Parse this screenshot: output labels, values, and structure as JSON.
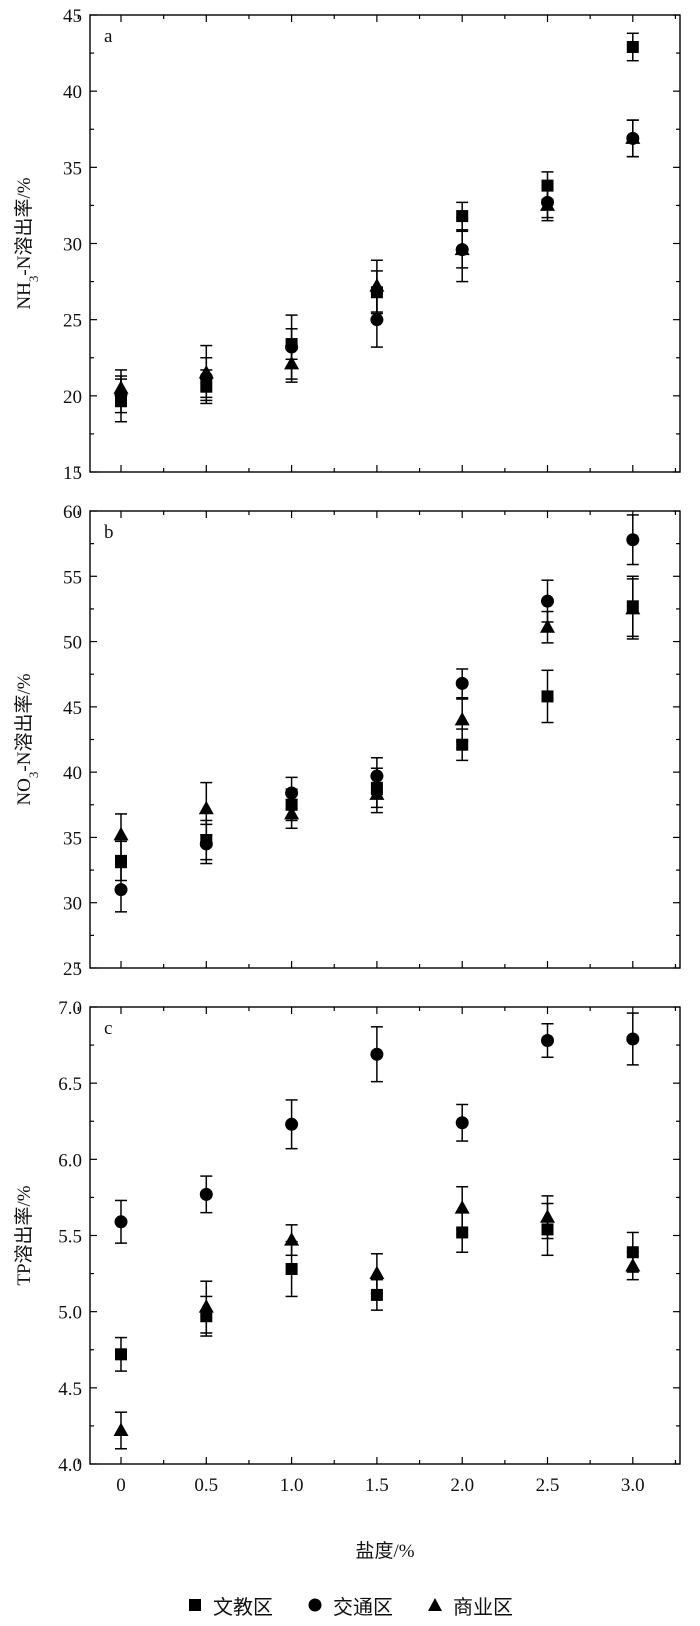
{
  "chart_data": [
    {
      "type": "scatter",
      "panel_label": "a",
      "ylabel": "NH3-N溶出率/%",
      "ylabel_parts": [
        "NH",
        "3",
        "-N溶出率/%"
      ],
      "xlabel": "盐度/%",
      "ylim": [
        15,
        45
      ],
      "yticks": [
        15,
        20,
        25,
        30,
        35,
        40,
        45
      ],
      "ytick_labels": [
        "15",
        "20",
        "25",
        "30",
        "35",
        "40",
        "45"
      ],
      "x": [
        0,
        0.5,
        1.0,
        1.5,
        2.0,
        2.5,
        3.0
      ],
      "error_bars": true,
      "series": [
        {
          "name": "文教区",
          "marker": "square",
          "values": [
            19.7,
            20.6,
            23.4,
            26.8,
            31.8,
            33.8,
            42.9
          ],
          "errors": [
            1.4,
            1.1,
            1.0,
            1.4,
            0.9,
            0.9,
            0.9
          ]
        },
        {
          "name": "交通区",
          "marker": "circle",
          "values": [
            20.1,
            21.2,
            23.2,
            25.0,
            29.6,
            32.7,
            36.9
          ],
          "errors": [
            1.2,
            1.3,
            2.1,
            1.8,
            2.1,
            1.0,
            1.2
          ]
        },
        {
          "name": "商业区",
          "marker": "triangle",
          "values": [
            20.5,
            21.5,
            22.1,
            27.2,
            29.6,
            32.5,
            36.9
          ],
          "errors": [
            1.2,
            1.8,
            1.2,
            1.7,
            1.2,
            1.0,
            1.2
          ]
        }
      ]
    },
    {
      "type": "scatter",
      "panel_label": "b",
      "ylabel": "NO3-N溶出率/%",
      "ylabel_parts": [
        "NO",
        "3",
        "-N溶出率/%"
      ],
      "xlabel": "盐度/%",
      "ylim": [
        25,
        60
      ],
      "yticks": [
        25,
        30,
        35,
        40,
        45,
        50,
        55,
        60
      ],
      "ytick_labels": [
        "25",
        "30",
        "35",
        "40",
        "45",
        "50",
        "55",
        "60"
      ],
      "x": [
        0,
        0.5,
        1.0,
        1.5,
        2.0,
        2.5,
        3.0
      ],
      "error_bars": true,
      "series": [
        {
          "name": "文教区",
          "marker": "square",
          "values": [
            33.2,
            34.8,
            37.5,
            38.8,
            42.1,
            45.8,
            52.7
          ],
          "errors": [
            1.5,
            1.5,
            1.2,
            1.5,
            1.2,
            2.0,
            2.3
          ]
        },
        {
          "name": "交通区",
          "marker": "circle",
          "values": [
            31.0,
            34.5,
            38.4,
            39.7,
            46.8,
            53.1,
            57.8
          ],
          "errors": [
            1.7,
            1.5,
            1.2,
            1.4,
            1.1,
            1.6,
            1.9
          ]
        },
        {
          "name": "商业区",
          "marker": "triangle",
          "values": [
            35.2,
            37.2,
            36.8,
            38.3,
            44.0,
            51.1,
            52.5
          ],
          "errors": [
            1.6,
            2.0,
            1.1,
            1.4,
            1.6,
            1.2,
            2.3
          ]
        }
      ]
    },
    {
      "type": "scatter",
      "panel_label": "c",
      "ylabel": "TP溶出率/%",
      "ylabel_parts": [
        "TP溶出率/%",
        "",
        ""
      ],
      "xlabel": "盐度/%",
      "ylim": [
        4.0,
        7.0
      ],
      "yticks": [
        4.0,
        4.5,
        5.0,
        5.5,
        6.0,
        6.5,
        7.0
      ],
      "ytick_labels": [
        "4.0",
        "4.5",
        "5.0",
        "5.5",
        "6.0",
        "6.5",
        "7.0"
      ],
      "x": [
        0,
        0.5,
        1.0,
        1.5,
        2.0,
        2.5,
        3.0
      ],
      "xticks": [
        0,
        0.5,
        1.0,
        1.5,
        2.0,
        2.5,
        3.0
      ],
      "xtick_labels": [
        "0",
        "0.5",
        "1.0",
        "1.5",
        "2.0",
        "2.5",
        "3.0"
      ],
      "error_bars": true,
      "series": [
        {
          "name": "文教区",
          "marker": "square",
          "values": [
            4.72,
            4.97,
            5.28,
            5.11,
            5.52,
            5.54,
            5.39
          ],
          "errors": [
            0.11,
            0.13,
            0.18,
            0.1,
            0.13,
            0.17,
            0.13
          ]
        },
        {
          "name": "交通区",
          "marker": "circle",
          "values": [
            5.59,
            5.77,
            6.23,
            6.69,
            6.24,
            6.78,
            6.79
          ],
          "errors": [
            0.14,
            0.12,
            0.16,
            0.18,
            0.12,
            0.11,
            0.17
          ]
        },
        {
          "name": "商业区",
          "marker": "triangle",
          "values": [
            4.22,
            5.03,
            5.47,
            5.25,
            5.68,
            5.62,
            5.3
          ],
          "errors": [
            0.12,
            0.17,
            0.1,
            0.13,
            0.14,
            0.14,
            0.09
          ]
        }
      ]
    }
  ],
  "legend": {
    "placement": "bottom-center",
    "items": [
      {
        "label": "文教区",
        "marker": "square"
      },
      {
        "label": "交通区",
        "marker": "circle"
      },
      {
        "label": "商业区",
        "marker": "triangle"
      }
    ]
  }
}
